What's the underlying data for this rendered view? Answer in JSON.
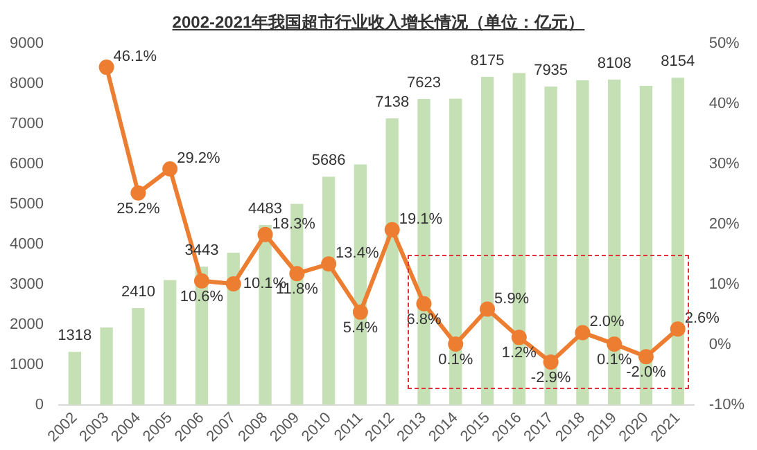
{
  "chart_data": {
    "type": "bar",
    "title": "2002-2021年我国超市行业收入增长情况（单位：亿元）",
    "categories": [
      "2002",
      "2003",
      "2004",
      "2005",
      "2006",
      "2007",
      "2008",
      "2009",
      "2010",
      "2011",
      "2012",
      "2013",
      "2014",
      "2015",
      "2016",
      "2017",
      "2018",
      "2019",
      "2020",
      "2021"
    ],
    "series": [
      {
        "color": "#c5e0b4",
        "values": [
          1318,
          1930,
          2410,
          3110,
          3443,
          3790,
          4483,
          5010,
          5686,
          5990,
          7138,
          7623,
          7630,
          8175,
          8270,
          7935,
          8090,
          8108,
          7950,
          8154
        ],
        "value_labels": [
          "1318",
          null,
          "2410",
          null,
          "3443",
          null,
          "4483",
          null,
          "5686",
          null,
          "7138",
          "7623",
          null,
          "8175",
          null,
          "7935",
          null,
          "8108",
          null,
          "8154"
        ]
      },
      {
        "type": "line",
        "axis": "y2",
        "color": "#ed7d31",
        "values": [
          null,
          46.1,
          25.2,
          29.2,
          10.6,
          10.1,
          18.3,
          11.8,
          13.4,
          5.4,
          19.1,
          6.8,
          0.1,
          5.9,
          1.2,
          -2.9,
          2.0,
          0.1,
          -2.0,
          2.6
        ],
        "value_labels": [
          null,
          "46.1%",
          "25.2%",
          "29.2%",
          "10.6%",
          "10.1%",
          "18.3%",
          "11.8%",
          "13.4%",
          "5.4%",
          "19.1%",
          "6.8%",
          "0.1%",
          "5.9%",
          "1.2%",
          "-2.9%",
          "2.0%",
          "0.1%",
          "-2.0%",
          "2.6%"
        ]
      }
    ],
    "ylim": [
      0,
      9000
    ],
    "yticks": [
      0,
      1000,
      2000,
      3000,
      4000,
      5000,
      6000,
      7000,
      8000,
      9000
    ],
    "y2lim": [
      -10,
      50
    ],
    "y2ticks": [
      {
        "value": -10,
        "label": "-10%"
      },
      {
        "value": 0,
        "label": "0%"
      },
      {
        "value": 10,
        "label": "10%"
      },
      {
        "value": 20,
        "label": "20%"
      },
      {
        "value": 30,
        "label": "30%"
      },
      {
        "value": 40,
        "label": "40%"
      },
      {
        "value": 50,
        "label": "50%"
      }
    ],
    "grid": false,
    "legend": false,
    "marker": "circle",
    "line_style": "solid"
  }
}
